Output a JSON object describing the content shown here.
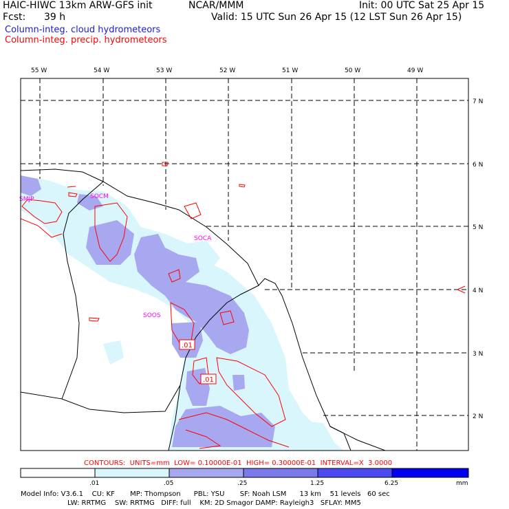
{
  "header": {
    "title": "HAIC-HIWC 13km ARW-GFS init",
    "org": "NCAR/MMM",
    "init": "Init: 00 UTC Sat 25 Apr 15",
    "fcst_label": "Fcst:",
    "fcst_value": "39 h",
    "valid": "Valid: 15 UTC Sun 26 Apr 15 (12 LST Sun 26 Apr 15)",
    "line_cloud": "Column-integ. cloud hydrometeors",
    "line_precip": "Column-integ. precip. hydrometeors"
  },
  "colors": {
    "cloud_text": "#1a1adb",
    "precip_text": "#ff0000",
    "shade_1": "#d8f6fb",
    "shade_2": "#a8a8f0",
    "shade_3": "#7a7aec",
    "shade_4": "#4a4af0",
    "shade_5": "#0000ee"
  },
  "map": {
    "lon_labels": [
      "55 W",
      "54 W",
      "53 W",
      "52 W",
      "51 W",
      "50 W",
      "49 W"
    ],
    "lat_labels": [
      "7 N",
      "6 N",
      "5 N",
      "4 N",
      "3 N",
      "2 N"
    ],
    "stations": [
      "SMJP",
      "SOCM",
      "SOCA",
      "SOOS"
    ],
    "contour_labels": [
      ".01",
      ".01"
    ]
  },
  "contours_info": "CONTOURS:  UNITS=mm  LOW= 0.10000E-01  HIGH= 0.30000E-01  INTERVAL=X  3.0000",
  "colorbar": {
    "ticks": [
      ".01",
      ".05",
      ".25",
      "1.25",
      "6.25"
    ],
    "unit": "mm"
  },
  "model_info": {
    "line1": "Model Info: V3.6.1    CU: KF       MP: Thompson      PBL: YSU       SF: Noah LSM      13 km    51 levels   60 sec",
    "line2": "LW: RRTMG    SW: RRTMG   DIFF: full    KM: 2D Smagor DAMP: Rayleigh3   SFLAY: MM5"
  }
}
